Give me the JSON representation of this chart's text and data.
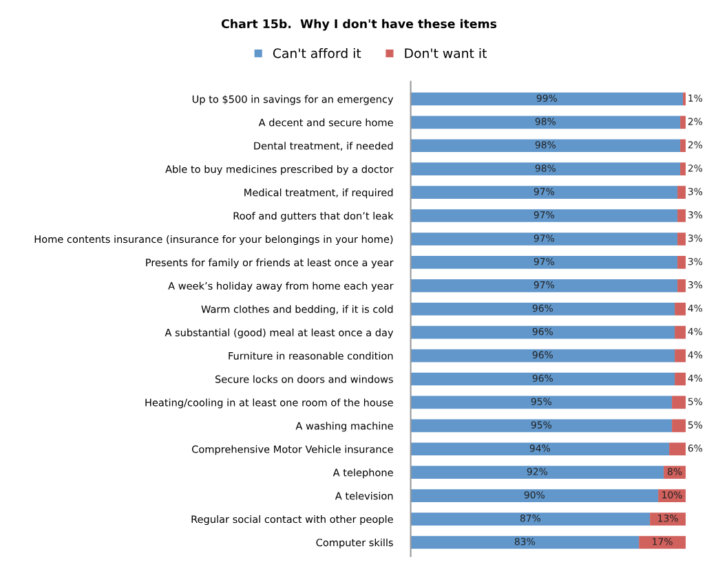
{
  "chart_data": {
    "type": "bar",
    "orientation": "horizontal",
    "stacked": true,
    "title": "Chart 15b.  Why I don't have these items",
    "categories": [
      "Up to $500 in savings for an emergency",
      "A decent and secure home",
      "Dental treatment, if needed",
      "Able to buy medicines prescribed by a doctor",
      "Medical treatment, if required",
      "Roof and gutters that don’t leak",
      "Home contents insurance (insurance for your belongings in your home)",
      "Presents for family or friends at least once a year",
      "A week’s holiday away from home each year",
      "Warm clothes and bedding, if it is cold",
      "A substantial (good) meal at least once a day",
      "Furniture in reasonable condition",
      "Secure locks on doors and windows",
      "Heating/cooling in at least one room of the house",
      "A washing machine",
      "Comprehensive Motor Vehicle insurance",
      "A telephone",
      "A television",
      "Regular social contact with other people",
      "Computer skills"
    ],
    "series": [
      {
        "name": "Can't afford it",
        "color": "#6197cb",
        "values": [
          99,
          98,
          98,
          98,
          97,
          97,
          97,
          97,
          97,
          96,
          96,
          96,
          96,
          95,
          95,
          94,
          92,
          90,
          87,
          83
        ],
        "value_labels": [
          "99%",
          "98%",
          "98%",
          "98%",
          "97%",
          "97%",
          "97%",
          "97%",
          "97%",
          "96%",
          "96%",
          "96%",
          "96%",
          "95%",
          "95%",
          "94%",
          "92%",
          "90%",
          "87%",
          "83%"
        ]
      },
      {
        "name": "Don't want it",
        "color": "#d0615d",
        "values": [
          1,
          2,
          2,
          2,
          3,
          3,
          3,
          3,
          3,
          4,
          4,
          4,
          4,
          5,
          5,
          6,
          8,
          10,
          13,
          17
        ],
        "value_labels": [
          "1%",
          "2%",
          "2%",
          "2%",
          "3%",
          "3%",
          "3%",
          "3%",
          "3%",
          "4%",
          "4%",
          "4%",
          "4%",
          "5%",
          "5%",
          "6%",
          "8%",
          "10%",
          "13%",
          "17%"
        ]
      }
    ],
    "xlim": [
      0,
      100
    ],
    "tick_labels": "y",
    "legend": "top",
    "grid": false
  }
}
